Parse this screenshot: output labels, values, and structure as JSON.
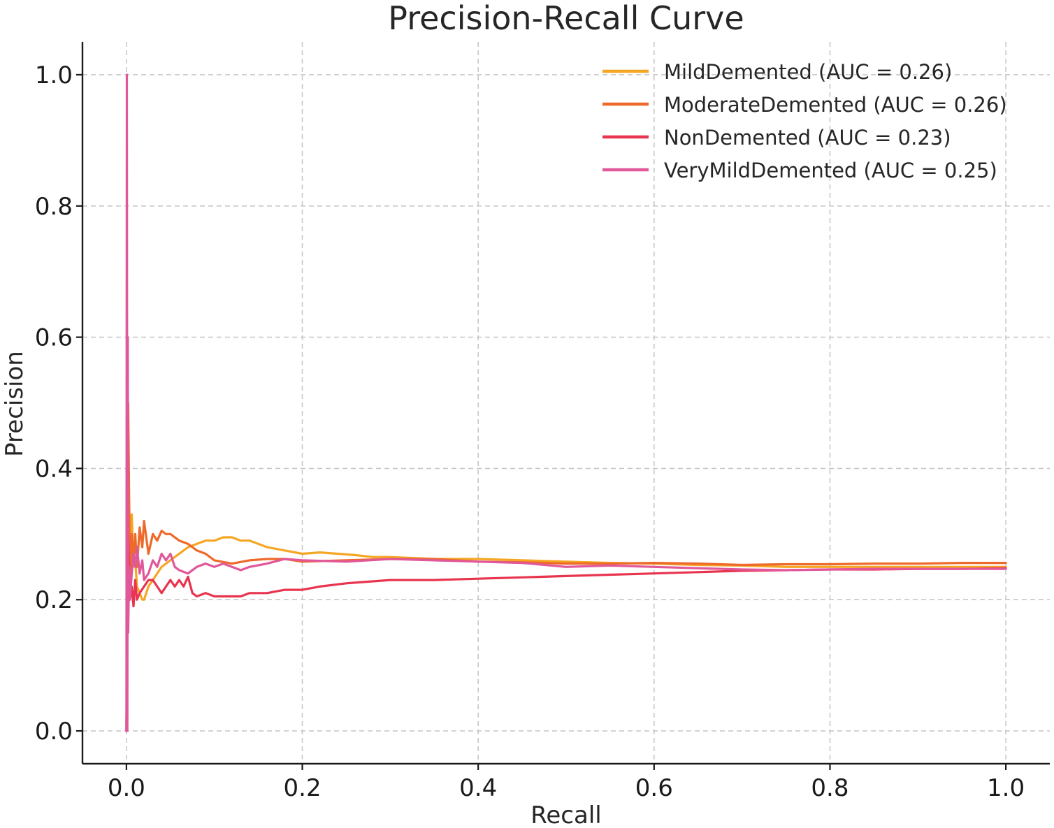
{
  "chart_data": {
    "type": "line",
    "title": "Precision-Recall Curve",
    "xlabel": "Recall",
    "ylabel": "Precision",
    "xlim": [
      -0.05,
      1.05
    ],
    "ylim": [
      -0.05,
      1.05
    ],
    "xticks": [
      0.0,
      0.2,
      0.4,
      0.6,
      0.8,
      1.0
    ],
    "yticks": [
      0.0,
      0.2,
      0.4,
      0.6,
      0.8,
      1.0
    ],
    "xtick_labels": [
      "0.0",
      "0.2",
      "0.4",
      "0.6",
      "0.8",
      "1.0"
    ],
    "ytick_labels": [
      "0.0",
      "0.2",
      "0.4",
      "0.6",
      "0.8",
      "1.0"
    ],
    "grid": true,
    "legend_position": "top-right",
    "series": [
      {
        "name": "MildDemented",
        "label": "MildDemented (AUC = 0.26)",
        "auc": 0.26,
        "color": "#F5A623",
        "x": [
          0.0,
          0.002,
          0.004,
          0.006,
          0.008,
          0.01,
          0.012,
          0.015,
          0.018,
          0.02,
          0.025,
          0.03,
          0.04,
          0.05,
          0.06,
          0.07,
          0.08,
          0.09,
          0.1,
          0.11,
          0.12,
          0.13,
          0.14,
          0.15,
          0.16,
          0.18,
          0.2,
          0.22,
          0.24,
          0.26,
          0.28,
          0.3,
          0.35,
          0.4,
          0.45,
          0.5,
          0.55,
          0.6,
          0.65,
          0.7,
          0.75,
          0.8,
          0.85,
          0.9,
          0.95,
          1.0
        ],
        "y": [
          0.0,
          0.4,
          0.3,
          0.33,
          0.25,
          0.26,
          0.22,
          0.21,
          0.2,
          0.2,
          0.22,
          0.23,
          0.25,
          0.26,
          0.27,
          0.28,
          0.285,
          0.29,
          0.29,
          0.295,
          0.295,
          0.29,
          0.29,
          0.285,
          0.28,
          0.275,
          0.27,
          0.272,
          0.27,
          0.268,
          0.265,
          0.265,
          0.262,
          0.262,
          0.26,
          0.258,
          0.256,
          0.255,
          0.253,
          0.252,
          0.25,
          0.25,
          0.25,
          0.25,
          0.25,
          0.25
        ]
      },
      {
        "name": "ModerateDemented",
        "label": "ModerateDemented (AUC = 0.26)",
        "auc": 0.26,
        "color": "#EE6A2A",
        "x": [
          0.0,
          0.002,
          0.004,
          0.006,
          0.008,
          0.01,
          0.012,
          0.015,
          0.018,
          0.02,
          0.025,
          0.03,
          0.035,
          0.04,
          0.045,
          0.05,
          0.06,
          0.07,
          0.08,
          0.09,
          0.1,
          0.12,
          0.14,
          0.16,
          0.18,
          0.2,
          0.25,
          0.3,
          0.35,
          0.4,
          0.45,
          0.5,
          0.55,
          0.6,
          0.65,
          0.7,
          0.75,
          0.8,
          0.85,
          0.9,
          0.95,
          1.0
        ],
        "y": [
          0.0,
          0.5,
          0.22,
          0.3,
          0.26,
          0.3,
          0.25,
          0.31,
          0.28,
          0.32,
          0.27,
          0.3,
          0.29,
          0.305,
          0.3,
          0.3,
          0.29,
          0.285,
          0.275,
          0.27,
          0.26,
          0.255,
          0.26,
          0.262,
          0.262,
          0.258,
          0.26,
          0.262,
          0.262,
          0.258,
          0.257,
          0.255,
          0.255,
          0.256,
          0.255,
          0.253,
          0.254,
          0.254,
          0.255,
          0.255,
          0.256,
          0.256
        ]
      },
      {
        "name": "NonDemented",
        "label": "NonDemented (AUC = 0.23)",
        "auc": 0.23,
        "color": "#E8344F",
        "x": [
          0.0,
          0.002,
          0.004,
          0.006,
          0.008,
          0.01,
          0.012,
          0.015,
          0.02,
          0.025,
          0.03,
          0.035,
          0.04,
          0.045,
          0.05,
          0.055,
          0.06,
          0.065,
          0.07,
          0.075,
          0.08,
          0.09,
          0.1,
          0.11,
          0.12,
          0.13,
          0.14,
          0.16,
          0.18,
          0.2,
          0.22,
          0.25,
          0.3,
          0.35,
          0.4,
          0.45,
          0.5,
          0.55,
          0.6,
          0.65,
          0.7,
          0.75,
          0.8,
          0.85,
          0.9,
          0.95,
          1.0
        ],
        "y": [
          0.0,
          0.3,
          0.2,
          0.22,
          0.19,
          0.23,
          0.2,
          0.21,
          0.22,
          0.23,
          0.23,
          0.22,
          0.21,
          0.22,
          0.23,
          0.22,
          0.23,
          0.22,
          0.235,
          0.21,
          0.205,
          0.21,
          0.205,
          0.205,
          0.205,
          0.205,
          0.21,
          0.21,
          0.215,
          0.215,
          0.22,
          0.225,
          0.23,
          0.23,
          0.232,
          0.234,
          0.236,
          0.238,
          0.24,
          0.242,
          0.244,
          0.245,
          0.246,
          0.246,
          0.247,
          0.247,
          0.248
        ]
      },
      {
        "name": "VeryMildDemented",
        "label": "VeryMildDemented (AUC = 0.25)",
        "auc": 0.25,
        "color": "#E0579A",
        "x": [
          0.0,
          0.0005,
          0.001,
          0.0015,
          0.002,
          0.003,
          0.004,
          0.006,
          0.008,
          0.01,
          0.012,
          0.015,
          0.018,
          0.02,
          0.025,
          0.03,
          0.035,
          0.04,
          0.045,
          0.05,
          0.055,
          0.06,
          0.07,
          0.08,
          0.09,
          0.1,
          0.11,
          0.12,
          0.13,
          0.14,
          0.16,
          0.18,
          0.2,
          0.25,
          0.3,
          0.35,
          0.4,
          0.45,
          0.5,
          0.55,
          0.6,
          0.65,
          0.7,
          0.75,
          0.8,
          0.85,
          0.9,
          0.95,
          1.0
        ],
        "y": [
          0.0,
          1.0,
          0.0,
          0.6,
          0.15,
          0.25,
          0.2,
          0.24,
          0.27,
          0.25,
          0.28,
          0.24,
          0.26,
          0.23,
          0.24,
          0.26,
          0.25,
          0.27,
          0.26,
          0.27,
          0.25,
          0.245,
          0.24,
          0.25,
          0.255,
          0.25,
          0.255,
          0.25,
          0.245,
          0.25,
          0.255,
          0.262,
          0.26,
          0.258,
          0.262,
          0.26,
          0.258,
          0.256,
          0.25,
          0.252,
          0.25,
          0.248,
          0.246,
          0.245,
          0.246,
          0.247,
          0.247,
          0.247,
          0.247
        ]
      }
    ]
  }
}
